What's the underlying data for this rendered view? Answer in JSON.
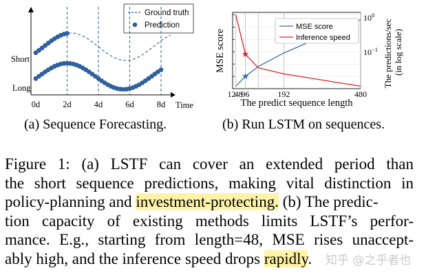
{
  "figure_a": {
    "legend": {
      "ground_truth": "Ground truth",
      "prediction": "Prediction"
    },
    "y_labels": {
      "short": "Short",
      "long": "Long"
    },
    "x_ticks": [
      "0d",
      "2d",
      "4d",
      "6d",
      "8d"
    ],
    "x_label": "Time",
    "caption": "(a) Sequence Forecasting.",
    "colors": {
      "series": "#2e5f9e"
    }
  },
  "figure_b": {
    "caption": "(b) Run LSTM on sequences.",
    "chart_data": {
      "type": "line",
      "xlabel": "The predict sequence length",
      "ylabel": "MSE score",
      "ylabel_right": "The predictions/sec (in log scale)",
      "x_ticks": [
        "12",
        "48",
        "96",
        "192",
        "480"
      ],
      "x": [
        12,
        48,
        96,
        192,
        480
      ],
      "xlim": [
        0,
        480
      ],
      "right_axis_ticks": [
        "10^0",
        "10^-1"
      ],
      "series": [
        {
          "name": "MSE score",
          "color": "#3a6bb0",
          "values": [
            0.2,
            1.0,
            1.8,
            2.9,
            5.6
          ]
        },
        {
          "name": "Inference speed",
          "color": "#e02020",
          "values": [
            6.0,
            2.8,
            1.7,
            1.2,
            0.2
          ]
        }
      ],
      "grid": true,
      "legend_position": "top-right"
    }
  },
  "text": {
    "line1": "Figure 1: (a) LSTF can cover an extended period than",
    "line2": "the short sequence predictions, making vital distinction in",
    "line3_pre": "policy-planning and ",
    "line3_hl": "investment-protecting.",
    "line3_post": " (b) The predic-",
    "line4": "tion capacity of existing methods limits LSTF’s perfor-",
    "line5": "mance. E.g., starting from length=48, MSE rises unaccept-",
    "line6_pre": "ably high, and the inference speed drops ",
    "line6_hl": "rapidly",
    "line6_post": "."
  },
  "watermark": "知乎 @之乎者也"
}
